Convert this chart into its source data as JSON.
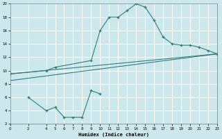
{
  "bg_color": "#cce8ed",
  "grid_color": "#ffffff",
  "line_color": "#2e7d7d",
  "xlabel": "Humidex (Indice chaleur)",
  "xlim": [
    0,
    23
  ],
  "ylim": [
    2,
    20
  ],
  "xticks": [
    0,
    2,
    4,
    5,
    6,
    7,
    8,
    9,
    10,
    11,
    12,
    13,
    14,
    15,
    16,
    17,
    18,
    19,
    20,
    21,
    22,
    23
  ],
  "yticks": [
    2,
    4,
    6,
    8,
    10,
    12,
    14,
    16,
    18,
    20
  ],
  "upper_curve_x": [
    0,
    4,
    5,
    9,
    10,
    11,
    12,
    13,
    14,
    15,
    16,
    17,
    18,
    19,
    20,
    21,
    22,
    23
  ],
  "upper_curve_y": [
    9.5,
    10.0,
    10.5,
    11.5,
    16.0,
    18.0,
    18.0,
    19.0,
    20.0,
    19.5,
    17.5,
    15.0,
    14.0,
    13.8,
    13.8,
    13.5,
    13.0,
    12.5
  ],
  "straight_line1_x": [
    0,
    23
  ],
  "straight_line1_y": [
    9.5,
    12.5
  ],
  "straight_line2_x": [
    0,
    23
  ],
  "straight_line2_y": [
    8.5,
    12.5
  ],
  "bottom_curve_x": [
    2,
    4,
    5,
    6,
    7,
    8,
    9,
    10
  ],
  "bottom_curve_y": [
    6.0,
    4.0,
    4.5,
    3.0,
    3.0,
    3.0,
    7.0,
    6.5
  ]
}
